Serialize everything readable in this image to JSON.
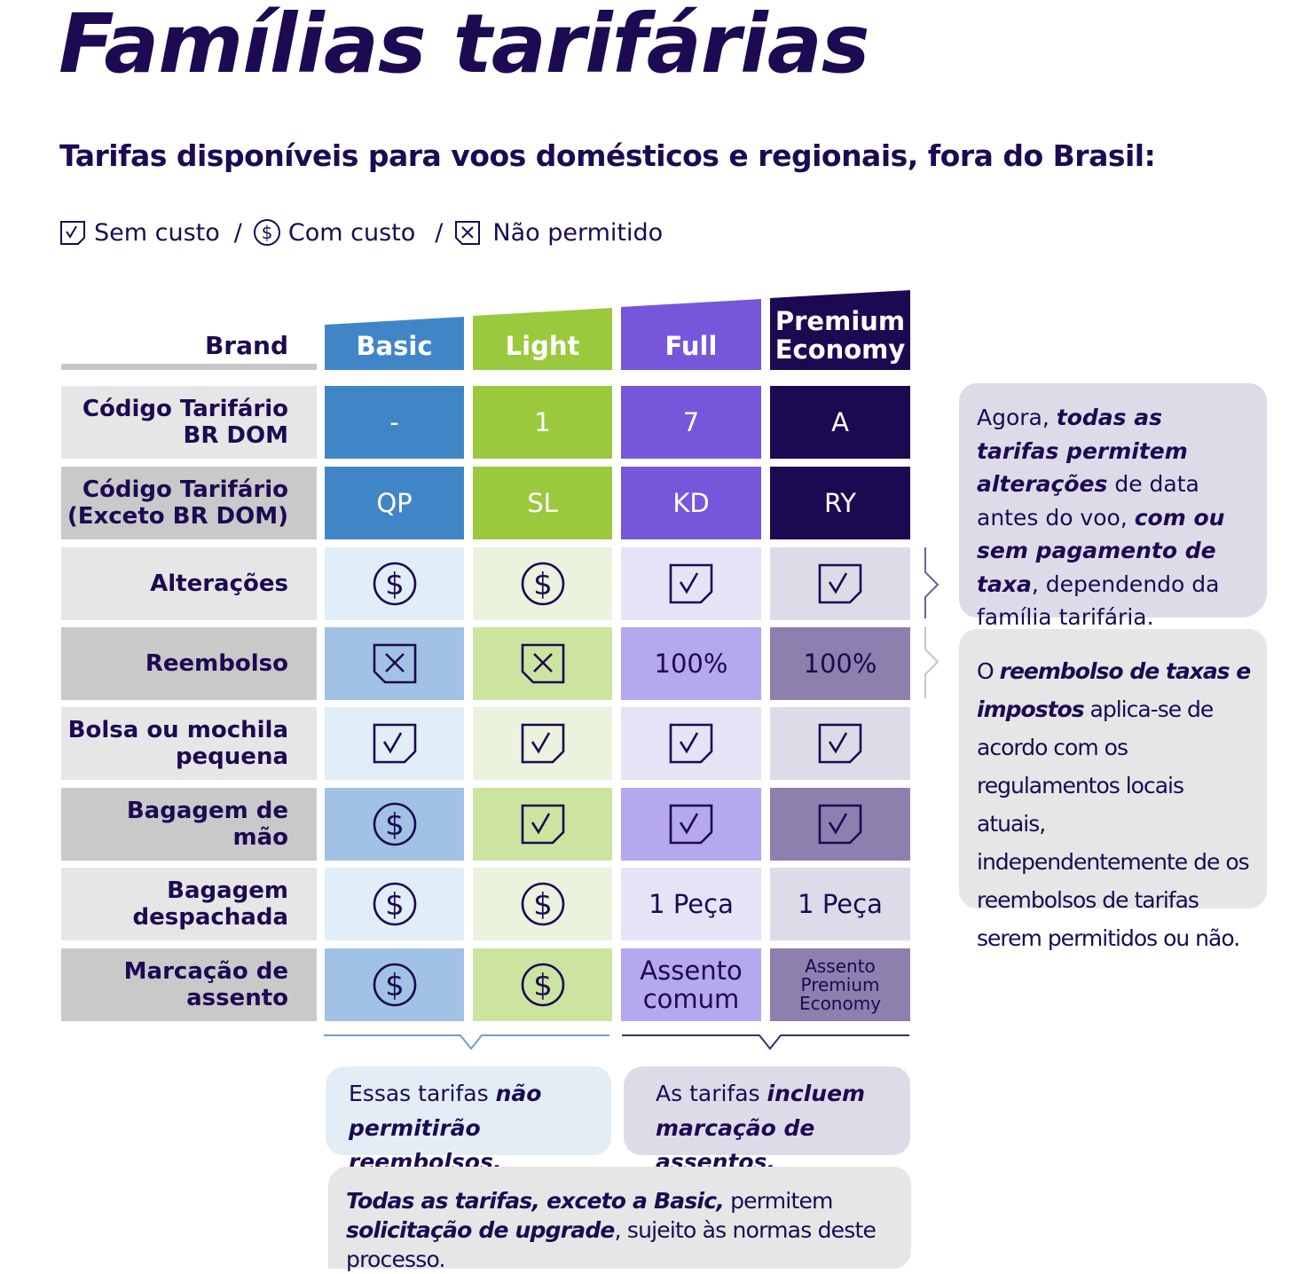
{
  "title": "Famílias tarifárias",
  "subtitle": "Tarifas disponíveis para voos domésticos e regionais, fora do Brasil:",
  "legend": {
    "free": "Sem custo",
    "paid": "Com custo",
    "not_allowed": "Não permitido",
    "separator": "/"
  },
  "brand_label": "Brand",
  "colors": {
    "basic": "#4086c7",
    "light": "#9ac93d",
    "full": "#7657dc",
    "premium": "#1b0a52",
    "text": "#1c0a52"
  },
  "columns": [
    {
      "key": "basic",
      "label": "Basic"
    },
    {
      "key": "light",
      "label": "Light"
    },
    {
      "key": "full",
      "label": "Full"
    },
    {
      "key": "premium",
      "label_line1": "Premium",
      "label_line2": "Economy"
    }
  ],
  "rows": [
    {
      "label_line1": "Código Tarifário",
      "label_line2": "BR DOM",
      "values": [
        "-",
        "1",
        "7",
        "A"
      ]
    },
    {
      "label_line1": "Código Tarifário",
      "label_line2": "(Exceto BR DOM)",
      "values": [
        "QP",
        "SL",
        "KD",
        "RY"
      ]
    },
    {
      "label_line1": "Alterações",
      "values": [
        "paid-icon",
        "paid-icon",
        "check-icon",
        "check-icon"
      ]
    },
    {
      "label_line1": "Reembolso",
      "values": [
        "cross-icon",
        "cross-icon",
        "100%",
        "100%"
      ]
    },
    {
      "label_line1": "Bolsa ou mochila",
      "label_line2": "pequena",
      "values": [
        "check-icon",
        "check-icon",
        "check-icon",
        "check-icon"
      ]
    },
    {
      "label_line1": "Bagagem de",
      "label_line2": "mão",
      "values": [
        "paid-icon",
        "check-icon",
        "check-icon",
        "check-icon"
      ]
    },
    {
      "label_line1": "Bagagem",
      "label_line2": "despachada",
      "values": [
        "paid-icon",
        "paid-icon",
        "1 Peça",
        "1 Peça"
      ]
    },
    {
      "label_line1": "Marcação de",
      "label_line2": "assento",
      "values": [
        "paid-icon",
        "paid-icon",
        "Assento comum",
        "Assento Premium Economy"
      ]
    }
  ],
  "seat_full": {
    "line1": "Assento",
    "line2": "comum"
  },
  "seat_premium": {
    "line1": "Assento",
    "line2": "Premium",
    "line3": "Economy"
  },
  "note_changes": {
    "p1": "Agora, ",
    "b1": "todas as tarifas permitem alterações",
    "p2": " de data antes do voo, ",
    "b2": "com ou sem pagamento de taxa",
    "p3": ", dependendo da família tarifária."
  },
  "note_refund": {
    "p1": "O ",
    "b1": "reembolso de taxas e impostos",
    "p2": " aplica-se de acordo com os regulamentos locais atuais, independentemente de os reembolsos de tarifas serem permitidos ou não."
  },
  "note_basic_light": {
    "p1": "Essas tarifas ",
    "b1": "não permitirão reembolsos."
  },
  "note_full_premium": {
    "p1": "As tarifas ",
    "b1": "incluem marcação de assentos."
  },
  "note_upgrade": {
    "b1": "Todas as tarifas, exceto a Basic,",
    "p1": " permitem ",
    "b2": "solicitação de upgrade",
    "p2": ", sujeito às normas deste processo."
  }
}
